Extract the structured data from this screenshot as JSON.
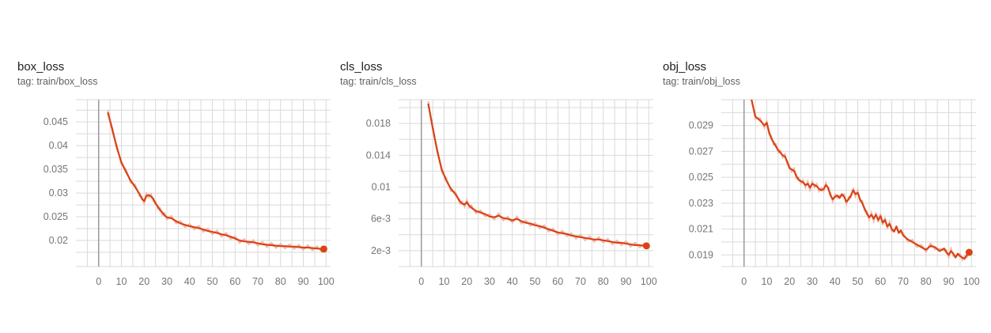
{
  "theme": {
    "line_color": "#d84315",
    "raw_color": "#f2b8aa",
    "grid_color": "#d9d9d9",
    "zero_axis_color": "#9e9e9e"
  },
  "chart_data": [
    {
      "type": "line",
      "title": "box_loss",
      "tag": "tag: train/box_loss",
      "grid": true,
      "xlim": [
        -10,
        102
      ],
      "ylim": [
        0.0145,
        0.0497
      ],
      "x_ticks": [
        {
          "value": 0,
          "label": "0"
        },
        {
          "value": 10,
          "label": "10"
        },
        {
          "value": 20,
          "label": "20"
        },
        {
          "value": 30,
          "label": "30"
        },
        {
          "value": 40,
          "label": "40"
        },
        {
          "value": 50,
          "label": "50"
        },
        {
          "value": 60,
          "label": "60"
        },
        {
          "value": 70,
          "label": "70"
        },
        {
          "value": 80,
          "label": "80"
        },
        {
          "value": 90,
          "label": "90"
        },
        {
          "value": 100,
          "label": "100"
        }
      ],
      "y_ticks": [
        {
          "value": 0.02,
          "label": "0.02"
        },
        {
          "value": 0.025,
          "label": "0.025"
        },
        {
          "value": 0.03,
          "label": "0.03"
        },
        {
          "value": 0.035,
          "label": "0.035"
        },
        {
          "value": 0.04,
          "label": "0.04"
        },
        {
          "value": 0.045,
          "label": "0.045"
        }
      ],
      "series": [
        {
          "x": [
            4,
            6,
            8,
            10,
            12,
            14,
            16,
            18,
            19,
            20,
            21,
            22,
            23,
            24,
            25,
            26,
            27,
            28,
            29,
            30,
            32,
            34,
            36,
            38,
            40,
            42,
            44,
            46,
            48,
            50,
            52,
            54,
            56,
            58,
            60,
            62,
            64,
            66,
            68,
            70,
            72,
            74,
            76,
            78,
            80,
            82,
            84,
            86,
            88,
            90,
            92,
            94,
            96,
            98,
            99
          ],
          "y": [
            0.047,
            0.0435,
            0.0395,
            0.0365,
            0.0345,
            0.0327,
            0.0313,
            0.0298,
            0.0288,
            0.0283,
            0.0294,
            0.0296,
            0.0293,
            0.0288,
            0.0278,
            0.0272,
            0.0264,
            0.0259,
            0.0253,
            0.0249,
            0.0247,
            0.0241,
            0.0236,
            0.0233,
            0.023,
            0.0228,
            0.0226,
            0.0223,
            0.022,
            0.0218,
            0.0216,
            0.0213,
            0.0211,
            0.0208,
            0.0204,
            0.02,
            0.0198,
            0.0197,
            0.0196,
            0.0194,
            0.0192,
            0.0191,
            0.019,
            0.0189,
            0.0188,
            0.0188,
            0.0187,
            0.0187,
            0.0186,
            0.0185,
            0.0185,
            0.0184,
            0.0183,
            0.0182,
            0.0182
          ]
        }
      ]
    },
    {
      "type": "line",
      "title": "cls_loss",
      "tag": "tag: train/cls_loss",
      "grid": true,
      "xlim": [
        -10,
        102
      ],
      "ylim": [
        0,
        0.021
      ],
      "x_ticks": [
        {
          "value": 0,
          "label": "0"
        },
        {
          "value": 10,
          "label": "10"
        },
        {
          "value": 20,
          "label": "20"
        },
        {
          "value": 30,
          "label": "30"
        },
        {
          "value": 40,
          "label": "40"
        },
        {
          "value": 50,
          "label": "50"
        },
        {
          "value": 60,
          "label": "60"
        },
        {
          "value": 70,
          "label": "70"
        },
        {
          "value": 80,
          "label": "80"
        },
        {
          "value": 90,
          "label": "90"
        },
        {
          "value": 100,
          "label": "100"
        }
      ],
      "y_ticks": [
        {
          "value": 0.002,
          "label": "2e-3"
        },
        {
          "value": 0.006,
          "label": "6e-3"
        },
        {
          "value": 0.01,
          "label": "0.01"
        },
        {
          "value": 0.014,
          "label": "0.014"
        },
        {
          "value": 0.018,
          "label": "0.018"
        }
      ],
      "series": [
        {
          "x": [
            3,
            5,
            7,
            9,
            11,
            13,
            15,
            17,
            18,
            19,
            20,
            21,
            22,
            24,
            26,
            28,
            30,
            32,
            34,
            36,
            38,
            40,
            42,
            44,
            46,
            48,
            50,
            52,
            54,
            56,
            58,
            60,
            62,
            64,
            66,
            68,
            70,
            72,
            74,
            76,
            78,
            80,
            82,
            84,
            86,
            88,
            90,
            92,
            94,
            96,
            98,
            99
          ],
          "y": [
            0.0205,
            0.0175,
            0.0145,
            0.0122,
            0.0108,
            0.0098,
            0.0091,
            0.0082,
            0.0079,
            0.0078,
            0.0081,
            0.0077,
            0.0074,
            0.007,
            0.0068,
            0.0066,
            0.0063,
            0.0062,
            0.0064,
            0.0061,
            0.006,
            0.0058,
            0.006,
            0.0057,
            0.0055,
            0.0054,
            0.0052,
            0.0051,
            0.0049,
            0.0047,
            0.0045,
            0.0043,
            0.0042,
            0.0041,
            0.0039,
            0.0038,
            0.0037,
            0.0036,
            0.0035,
            0.0034,
            0.0034,
            0.0033,
            0.0032,
            0.0031,
            0.003,
            0.003,
            0.0029,
            0.0028,
            0.0027,
            0.0027,
            0.0026,
            0.0026
          ]
        }
      ]
    },
    {
      "type": "line",
      "title": "obj_loss",
      "tag": "tag: train/obj_loss",
      "grid": true,
      "xlim": [
        -10,
        102
      ],
      "ylim": [
        0.0181,
        0.031
      ],
      "x_ticks": [
        {
          "value": 0,
          "label": "0"
        },
        {
          "value": 10,
          "label": "10"
        },
        {
          "value": 20,
          "label": "20"
        },
        {
          "value": 30,
          "label": "30"
        },
        {
          "value": 40,
          "label": "40"
        },
        {
          "value": 50,
          "label": "50"
        },
        {
          "value": 60,
          "label": "60"
        },
        {
          "value": 70,
          "label": "70"
        },
        {
          "value": 80,
          "label": "80"
        },
        {
          "value": 90,
          "label": "90"
        },
        {
          "value": 100,
          "label": "100"
        }
      ],
      "y_ticks": [
        {
          "value": 0.019,
          "label": "0.019"
        },
        {
          "value": 0.021,
          "label": "0.021"
        },
        {
          "value": 0.023,
          "label": "0.023"
        },
        {
          "value": 0.025,
          "label": "0.025"
        },
        {
          "value": 0.027,
          "label": "0.027"
        },
        {
          "value": 0.029,
          "label": "0.029"
        }
      ],
      "series": [
        {
          "x": [
            3,
            5,
            7,
            9,
            10,
            11,
            12,
            13,
            14,
            15,
            16,
            17,
            18,
            19,
            20,
            21,
            22,
            23,
            24,
            25,
            26,
            27,
            28,
            29,
            30,
            31,
            32,
            33,
            34,
            35,
            36,
            37,
            38,
            39,
            40,
            41,
            42,
            43,
            44,
            45,
            46,
            47,
            48,
            49,
            50,
            51,
            52,
            53,
            54,
            55,
            56,
            57,
            58,
            59,
            60,
            61,
            62,
            63,
            64,
            65,
            66,
            67,
            68,
            69,
            70,
            72,
            74,
            76,
            78,
            80,
            82,
            84,
            86,
            88,
            89,
            90,
            91,
            92,
            93,
            94,
            95,
            96,
            97,
            98,
            99
          ],
          "y": [
            0.0312,
            0.0297,
            0.0294,
            0.029,
            0.0292,
            0.0285,
            0.028,
            0.0277,
            0.0274,
            0.0271,
            0.0269,
            0.0267,
            0.0266,
            0.0262,
            0.0257,
            0.0256,
            0.0255,
            0.0251,
            0.0248,
            0.0247,
            0.0246,
            0.0244,
            0.0245,
            0.0242,
            0.0245,
            0.0244,
            0.0243,
            0.0241,
            0.024,
            0.0241,
            0.0244,
            0.0242,
            0.0236,
            0.0233,
            0.0235,
            0.0236,
            0.0234,
            0.0237,
            0.0235,
            0.0231,
            0.0233,
            0.0236,
            0.024,
            0.0237,
            0.0238,
            0.0233,
            0.023,
            0.0226,
            0.0222,
            0.0219,
            0.0221,
            0.0218,
            0.0221,
            0.0217,
            0.022,
            0.0215,
            0.0217,
            0.0212,
            0.0214,
            0.021,
            0.0208,
            0.0212,
            0.0207,
            0.0209,
            0.0205,
            0.0202,
            0.02,
            0.0198,
            0.0196,
            0.0194,
            0.0197,
            0.0196,
            0.0193,
            0.0195,
            0.0192,
            0.019,
            0.0193,
            0.0191,
            0.0188,
            0.0191,
            0.0189,
            0.0188,
            0.0187,
            0.019,
            0.0192
          ]
        }
      ]
    }
  ]
}
